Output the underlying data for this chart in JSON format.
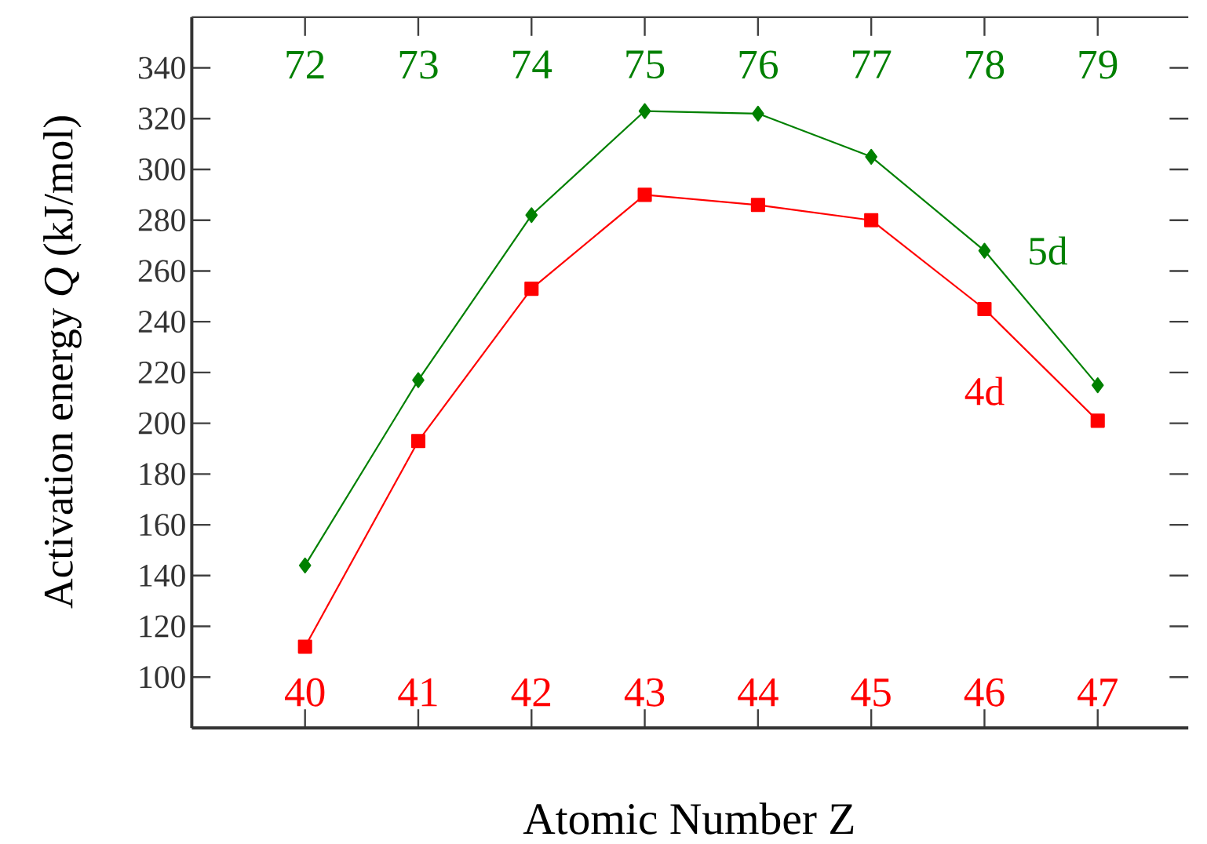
{
  "chart_data": {
    "type": "line",
    "xlabel": "Atomic Number Z",
    "ylabel": "Activation energy *Q* (kJ/mol)",
    "xlim": [
      39,
      47.8
    ],
    "xticks": [
      40,
      41,
      42,
      43,
      44,
      45,
      46,
      47
    ],
    "x2lim": [
      71,
      79.8
    ],
    "x2ticks": [
      72,
      73,
      74,
      75,
      76,
      77,
      78,
      79
    ],
    "ylim": [
      80,
      360
    ],
    "yticks": [
      100,
      120,
      140,
      160,
      180,
      200,
      220,
      240,
      260,
      280,
      300,
      320,
      340
    ],
    "series": [
      {
        "name": "4d",
        "color": "#ff0000",
        "marker": "square",
        "x": [
          40,
          41,
          42,
          43,
          44,
          45,
          46,
          47
        ],
        "values": [
          112,
          193,
          253,
          290,
          286,
          280,
          245,
          201
        ]
      },
      {
        "name": "5d",
        "color": "#008000",
        "marker": "diamond",
        "axis": "x2",
        "x": [
          72,
          73,
          74,
          75,
          76,
          77,
          78,
          79
        ],
        "values": [
          144,
          217,
          282,
          323,
          322,
          305,
          268,
          215
        ]
      }
    ]
  }
}
